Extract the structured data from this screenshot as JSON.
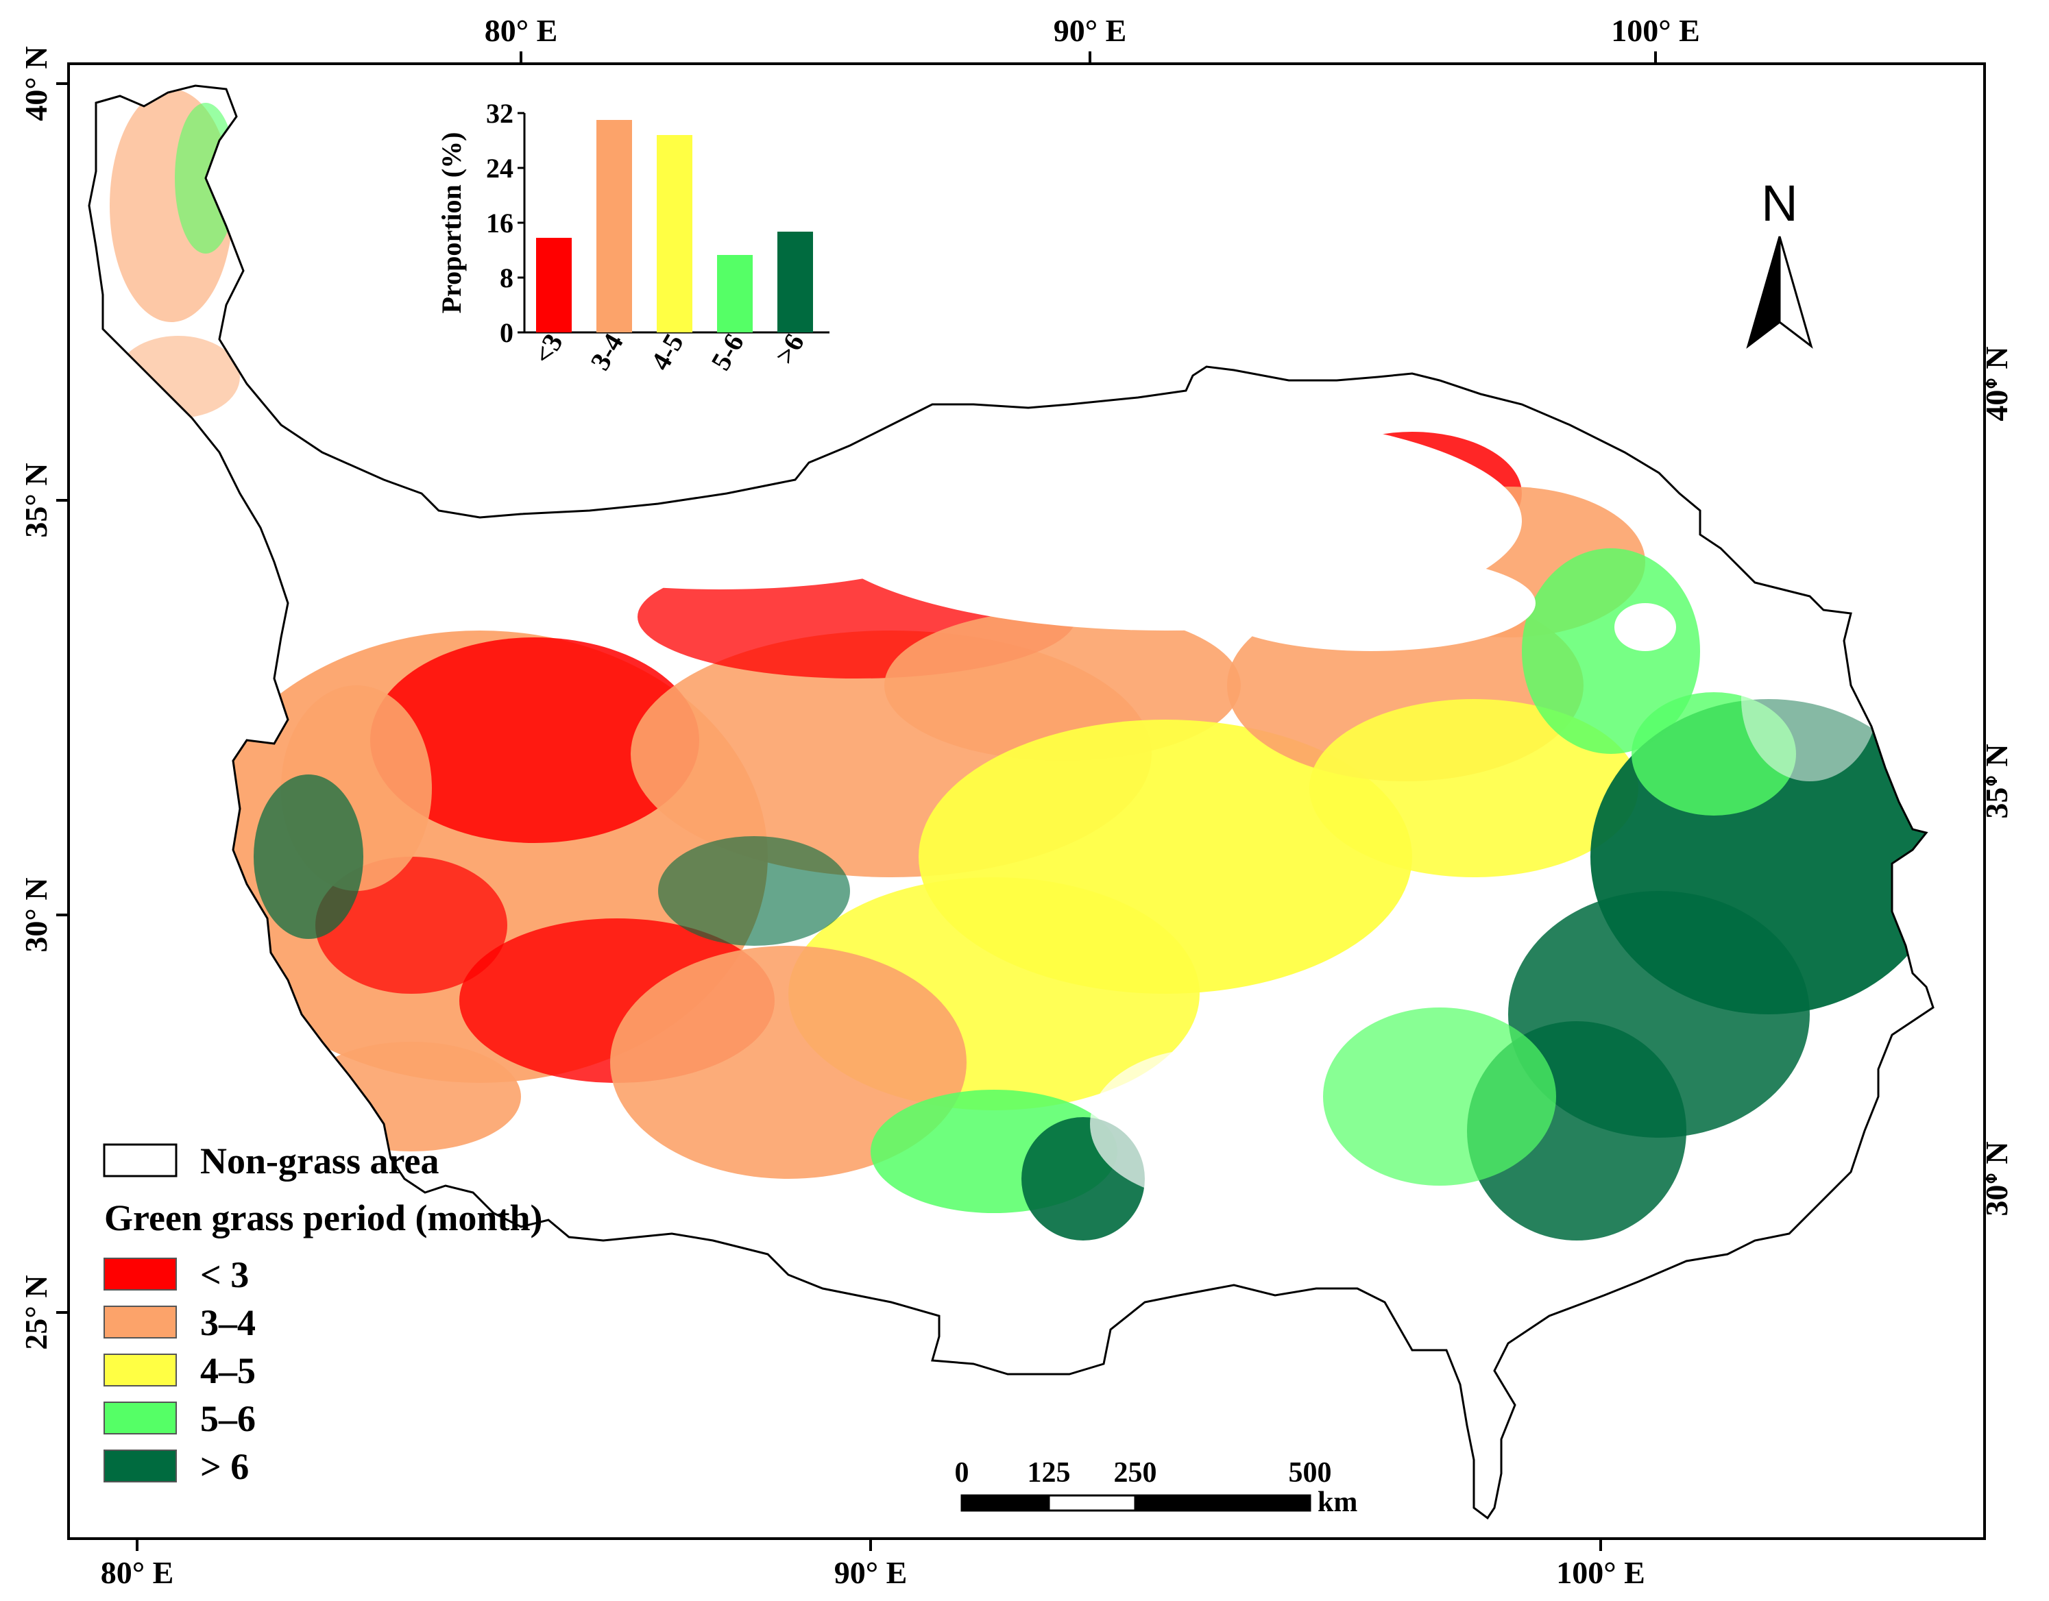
{
  "colors": {
    "lt3": "#ff0000",
    "c3_4": "#fca36a",
    "c4_5": "#ffff44",
    "c5_6": "#55ff66",
    "gt6": "#006b3f",
    "non_grass": "#ffffff",
    "outline": "#000000"
  },
  "frame": {
    "top_labels": [
      "80° E",
      "90° E",
      "100° E"
    ],
    "bottom_labels": [
      "80° E",
      "90° E",
      "100° E"
    ],
    "left_labels": [
      "40° N",
      "35° N",
      "30° N",
      "25° N"
    ],
    "right_labels": [
      "40° N",
      "35° N",
      "30° N"
    ]
  },
  "north_arrow": {
    "label": "N"
  },
  "legend": {
    "non_grass_label": "Non-grass area",
    "title": "Green grass period (month)",
    "items": [
      {
        "label": "< 3",
        "color": "#ff0000"
      },
      {
        "label": "3–4",
        "color": "#fca36a"
      },
      {
        "label": "4–5",
        "color": "#ffff44"
      },
      {
        "label": "5–6",
        "color": "#55ff66"
      },
      {
        "label": "> 6",
        "color": "#006b3f"
      }
    ]
  },
  "scale_bar": {
    "labels": [
      "0",
      "125",
      "250",
      "500"
    ],
    "unit": "km"
  },
  "chart_data": {
    "type": "bar",
    "categories": [
      "<3",
      "3-4",
      "4-5",
      "5-6",
      ">6"
    ],
    "values": [
      13.8,
      31,
      28.8,
      11.3,
      14.7
    ],
    "colors": [
      "#ff0000",
      "#fca36a",
      "#ffff44",
      "#55ff66",
      "#006b3f"
    ],
    "ylabel": "Proportion (%)",
    "yticks": [
      0,
      8,
      16,
      24,
      32
    ],
    "ylim": [
      0,
      32
    ]
  }
}
